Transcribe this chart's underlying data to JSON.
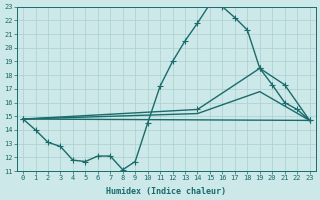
{
  "xlabel": "Humidex (Indice chaleur)",
  "bg_color": "#cce8e8",
  "line_color": "#1a6b6b",
  "grid_color": "#aacfcf",
  "xlim": [
    -0.5,
    23.5
  ],
  "ylim": [
    11,
    23
  ],
  "xticks": [
    0,
    1,
    2,
    3,
    4,
    5,
    6,
    7,
    8,
    9,
    10,
    11,
    12,
    13,
    14,
    15,
    16,
    17,
    18,
    19,
    20,
    21,
    22,
    23
  ],
  "yticks": [
    11,
    12,
    13,
    14,
    15,
    16,
    17,
    18,
    19,
    20,
    21,
    22,
    23
  ],
  "series": [
    {
      "x": [
        0,
        1,
        2,
        3,
        4,
        5,
        6,
        7,
        8,
        9,
        10,
        11,
        12,
        13,
        14,
        15,
        16,
        17,
        18,
        19,
        20,
        21,
        22,
        23
      ],
      "y": [
        14.8,
        14.0,
        13.1,
        12.8,
        11.8,
        11.7,
        12.1,
        12.1,
        11.1,
        11.7,
        14.5,
        17.2,
        19.0,
        20.5,
        21.8,
        23.2,
        23.0,
        22.2,
        21.3,
        18.5,
        17.3,
        16.0,
        15.5,
        14.7
      ],
      "marker": "+",
      "markersize": 4,
      "linewidth": 1.0,
      "has_marker": true
    },
    {
      "x": [
        0,
        14,
        19,
        21,
        23
      ],
      "y": [
        14.8,
        15.5,
        18.5,
        17.3,
        14.7
      ],
      "marker": "+",
      "markersize": 4,
      "linewidth": 1.0,
      "has_marker": true
    },
    {
      "x": [
        0,
        14,
        19,
        23
      ],
      "y": [
        14.8,
        15.2,
        16.8,
        14.7
      ],
      "marker": null,
      "markersize": 0,
      "linewidth": 1.0,
      "has_marker": false
    },
    {
      "x": [
        0,
        23
      ],
      "y": [
        14.8,
        14.7
      ],
      "marker": null,
      "markersize": 0,
      "linewidth": 1.0,
      "has_marker": false
    }
  ]
}
